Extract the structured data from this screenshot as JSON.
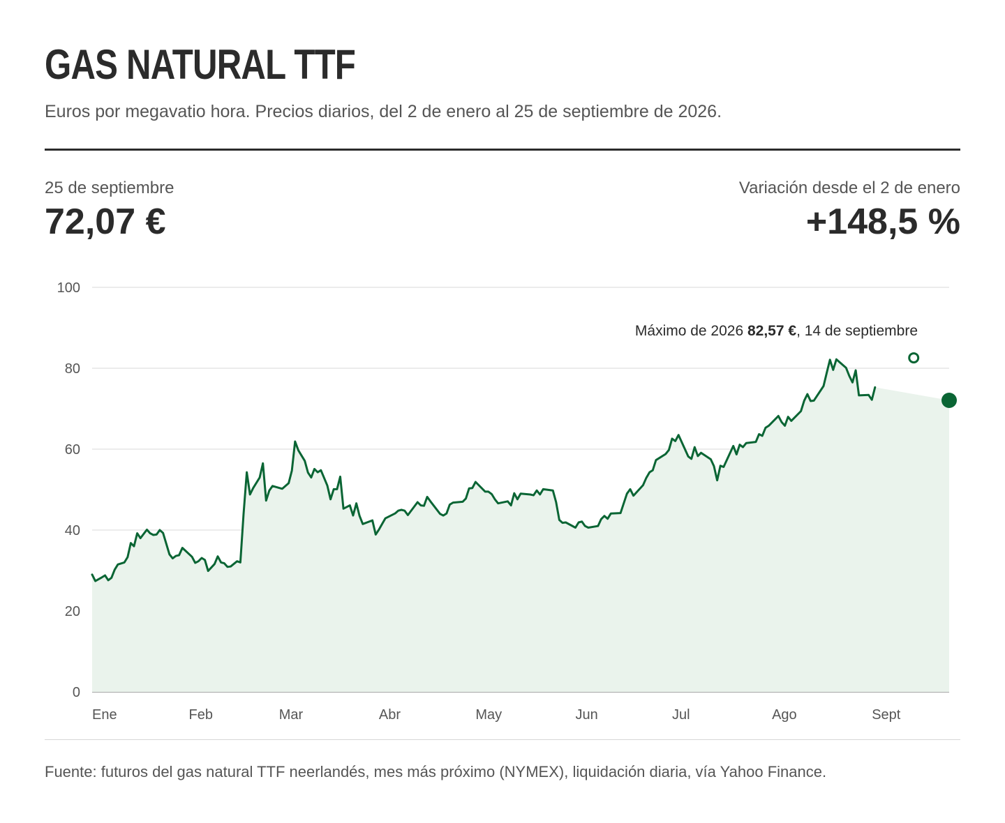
{
  "header": {
    "title": "GAS NATURAL TTF",
    "subtitle": "Euros por megavatio hora. Precios diarios, del 2 de enero al 25 de septiembre de 2026."
  },
  "stats": {
    "last_label": "25 de septiembre",
    "last_value": "72,07 €",
    "change_label": "Variación desde el 2 de enero",
    "change_value": "+148,5 %"
  },
  "annotation": {
    "prefix": "Máximo de 2026 ",
    "value": "82,57 €",
    "suffix": ", 14 de septiembre"
  },
  "footer": {
    "source": "Fuente: futuros del gas natural TTF neerlandés, mes más próximo (NYMEX), liquidación diaria, vía Yahoo Finance."
  },
  "colors": {
    "line": "#0a6534",
    "area": "#eaf3ec",
    "grid": "#d9d9d9",
    "axis": "#8a8a8a"
  },
  "chart_data": {
    "type": "area",
    "title": "GAS NATURAL TTF",
    "ylabel": "Euros por megavatio hora",
    "ylim": [
      0,
      100
    ],
    "yticks": [
      0,
      20,
      40,
      60,
      80,
      100
    ],
    "xlim": [
      "2026-01-02",
      "2026-09-25"
    ],
    "x_ticks": [
      {
        "label": "Ene",
        "date": "2026-01-01"
      },
      {
        "label": "Feb",
        "date": "2026-02-01"
      },
      {
        "label": "Mar",
        "date": "2026-03-01"
      },
      {
        "label": "Abr",
        "date": "2026-04-01"
      },
      {
        "label": "May",
        "date": "2026-05-01"
      },
      {
        "label": "Jun",
        "date": "2026-06-01"
      },
      {
        "label": "Jul",
        "date": "2026-07-01"
      },
      {
        "label": "Ago",
        "date": "2026-08-01"
      },
      {
        "label": "Sept",
        "date": "2026-09-01"
      }
    ],
    "grid": true,
    "max_point": {
      "date": "2026-09-14",
      "value": 82.57
    },
    "last_point": {
      "date": "2026-09-25",
      "value": 72.07
    },
    "series": [
      {
        "values": [
          [
            "2026-01-02",
            29.0
          ],
          [
            "2026-01-03",
            27.4
          ],
          [
            "2026-01-05",
            28.3
          ],
          [
            "2026-01-06",
            28.8
          ],
          [
            "2026-01-07",
            27.6
          ],
          [
            "2026-01-08",
            28.2
          ],
          [
            "2026-01-09",
            30.2
          ],
          [
            "2026-01-10",
            31.5
          ],
          [
            "2026-01-12",
            32.0
          ],
          [
            "2026-01-13",
            33.3
          ],
          [
            "2026-01-14",
            36.8
          ],
          [
            "2026-01-15",
            36.0
          ],
          [
            "2026-01-16",
            39.2
          ],
          [
            "2026-01-17",
            38.0
          ],
          [
            "2026-01-19",
            40.1
          ],
          [
            "2026-01-20",
            39.2
          ],
          [
            "2026-01-21",
            38.8
          ],
          [
            "2026-01-22",
            38.9
          ],
          [
            "2026-01-23",
            40.0
          ],
          [
            "2026-01-24",
            39.3
          ],
          [
            "2026-01-26",
            34.0
          ],
          [
            "2026-01-27",
            33.0
          ],
          [
            "2026-01-28",
            33.6
          ],
          [
            "2026-01-29",
            33.8
          ],
          [
            "2026-01-30",
            35.6
          ],
          [
            "2026-02-02",
            33.4
          ],
          [
            "2026-02-03",
            31.9
          ],
          [
            "2026-02-04",
            32.3
          ],
          [
            "2026-02-05",
            33.1
          ],
          [
            "2026-02-06",
            32.6
          ],
          [
            "2026-02-07",
            29.9
          ],
          [
            "2026-02-09",
            31.6
          ],
          [
            "2026-02-10",
            33.5
          ],
          [
            "2026-02-11",
            32.0
          ],
          [
            "2026-02-12",
            31.8
          ],
          [
            "2026-02-13",
            30.9
          ],
          [
            "2026-02-14",
            31.0
          ],
          [
            "2026-02-16",
            32.3
          ],
          [
            "2026-02-17",
            32.0
          ],
          [
            "2026-02-18",
            44.0
          ],
          [
            "2026-02-19",
            54.3
          ],
          [
            "2026-02-20",
            48.8
          ],
          [
            "2026-02-21",
            50.4
          ],
          [
            "2026-02-23",
            53.0
          ],
          [
            "2026-02-24",
            56.5
          ],
          [
            "2026-02-25",
            47.3
          ],
          [
            "2026-02-26",
            49.8
          ],
          [
            "2026-02-27",
            50.9
          ],
          [
            "2026-03-02",
            50.2
          ],
          [
            "2026-03-03",
            50.9
          ],
          [
            "2026-03-04",
            51.6
          ],
          [
            "2026-03-05",
            54.7
          ],
          [
            "2026-03-06",
            61.9
          ],
          [
            "2026-03-07",
            59.7
          ],
          [
            "2026-03-09",
            57.1
          ],
          [
            "2026-03-10",
            54.2
          ],
          [
            "2026-03-11",
            53.0
          ],
          [
            "2026-03-12",
            55.1
          ],
          [
            "2026-03-13",
            54.3
          ],
          [
            "2026-03-14",
            54.8
          ],
          [
            "2026-03-16",
            51.0
          ],
          [
            "2026-03-17",
            47.6
          ],
          [
            "2026-03-18",
            50.1
          ],
          [
            "2026-03-19",
            50.1
          ],
          [
            "2026-03-20",
            53.2
          ],
          [
            "2026-03-21",
            45.3
          ],
          [
            "2026-03-23",
            46.1
          ],
          [
            "2026-03-24",
            43.6
          ],
          [
            "2026-03-25",
            46.6
          ],
          [
            "2026-03-26",
            43.5
          ],
          [
            "2026-03-27",
            41.5
          ],
          [
            "2026-03-30",
            42.4
          ],
          [
            "2026-03-31",
            38.9
          ],
          [
            "2026-04-01",
            40.1
          ],
          [
            "2026-04-02",
            41.5
          ],
          [
            "2026-04-03",
            42.9
          ],
          [
            "2026-04-06",
            44.1
          ],
          [
            "2026-04-07",
            44.8
          ],
          [
            "2026-04-08",
            45.0
          ],
          [
            "2026-04-09",
            44.8
          ],
          [
            "2026-04-10",
            43.7
          ],
          [
            "2026-04-13",
            46.9
          ],
          [
            "2026-04-14",
            46.1
          ],
          [
            "2026-04-15",
            46.0
          ],
          [
            "2026-04-16",
            48.2
          ],
          [
            "2026-04-17",
            47.1
          ],
          [
            "2026-04-20",
            44.0
          ],
          [
            "2026-04-21",
            43.6
          ],
          [
            "2026-04-22",
            44.1
          ],
          [
            "2026-04-23",
            46.3
          ],
          [
            "2026-04-24",
            46.8
          ],
          [
            "2026-04-27",
            47.0
          ],
          [
            "2026-04-28",
            47.8
          ],
          [
            "2026-04-29",
            50.3
          ],
          [
            "2026-04-30",
            50.4
          ],
          [
            "2026-05-01",
            51.9
          ],
          [
            "2026-05-04",
            49.5
          ],
          [
            "2026-05-05",
            49.5
          ],
          [
            "2026-05-06",
            48.9
          ],
          [
            "2026-05-07",
            47.6
          ],
          [
            "2026-05-08",
            46.6
          ],
          [
            "2026-05-11",
            47.1
          ],
          [
            "2026-05-12",
            46.1
          ],
          [
            "2026-05-13",
            49.1
          ],
          [
            "2026-05-14",
            47.6
          ],
          [
            "2026-05-15",
            49.0
          ],
          [
            "2026-05-18",
            48.8
          ],
          [
            "2026-05-19",
            48.6
          ],
          [
            "2026-05-20",
            49.8
          ],
          [
            "2026-05-21",
            48.8
          ],
          [
            "2026-05-22",
            50.1
          ],
          [
            "2026-05-25",
            49.8
          ],
          [
            "2026-05-26",
            46.9
          ],
          [
            "2026-05-27",
            42.5
          ],
          [
            "2026-05-28",
            41.8
          ],
          [
            "2026-05-29",
            41.9
          ],
          [
            "2026-06-01",
            40.6
          ],
          [
            "2026-06-02",
            41.9
          ],
          [
            "2026-06-03",
            42.1
          ],
          [
            "2026-06-04",
            41.0
          ],
          [
            "2026-06-05",
            40.6
          ],
          [
            "2026-06-08",
            41.0
          ],
          [
            "2026-06-09",
            42.7
          ],
          [
            "2026-06-10",
            43.5
          ],
          [
            "2026-06-11",
            42.8
          ],
          [
            "2026-06-12",
            44.1
          ],
          [
            "2026-06-15",
            44.2
          ],
          [
            "2026-06-16",
            46.6
          ],
          [
            "2026-06-17",
            49.0
          ],
          [
            "2026-06-18",
            50.1
          ],
          [
            "2026-06-19",
            48.5
          ],
          [
            "2026-06-22",
            51.1
          ],
          [
            "2026-06-23",
            52.9
          ],
          [
            "2026-06-24",
            54.3
          ],
          [
            "2026-06-25",
            54.8
          ],
          [
            "2026-06-26",
            57.3
          ],
          [
            "2026-06-29",
            58.8
          ],
          [
            "2026-06-30",
            59.8
          ],
          [
            "2026-07-01",
            62.6
          ],
          [
            "2026-07-02",
            62.0
          ],
          [
            "2026-07-03",
            63.5
          ],
          [
            "2026-07-06",
            58.2
          ],
          [
            "2026-07-07",
            57.6
          ],
          [
            "2026-07-08",
            60.5
          ],
          [
            "2026-07-09",
            58.3
          ],
          [
            "2026-07-10",
            59.1
          ],
          [
            "2026-07-13",
            57.5
          ],
          [
            "2026-07-14",
            55.8
          ],
          [
            "2026-07-15",
            52.3
          ],
          [
            "2026-07-16",
            55.9
          ],
          [
            "2026-07-17",
            55.6
          ],
          [
            "2026-07-20",
            60.8
          ],
          [
            "2026-07-21",
            58.7
          ],
          [
            "2026-07-22",
            61.1
          ],
          [
            "2026-07-23",
            60.5
          ],
          [
            "2026-07-24",
            61.5
          ],
          [
            "2026-07-27",
            61.8
          ],
          [
            "2026-07-28",
            63.7
          ],
          [
            "2026-07-29",
            63.3
          ],
          [
            "2026-07-30",
            65.3
          ],
          [
            "2026-07-31",
            65.8
          ],
          [
            "2026-08-03",
            68.2
          ],
          [
            "2026-08-04",
            66.7
          ],
          [
            "2026-08-05",
            65.8
          ],
          [
            "2026-08-06",
            68.0
          ],
          [
            "2026-08-07",
            67.0
          ],
          [
            "2026-08-10",
            69.4
          ],
          [
            "2026-08-11",
            72.0
          ],
          [
            "2026-08-12",
            73.6
          ],
          [
            "2026-08-13",
            71.9
          ],
          [
            "2026-08-14",
            72.0
          ],
          [
            "2026-08-17",
            75.6
          ],
          [
            "2026-08-18",
            78.9
          ],
          [
            "2026-08-19",
            82.1
          ],
          [
            "2026-08-20",
            79.6
          ],
          [
            "2026-08-21",
            82.2
          ],
          [
            "2026-08-24",
            80.1
          ],
          [
            "2026-08-25",
            78.1
          ],
          [
            "2026-08-26",
            76.5
          ],
          [
            "2026-08-27",
            79.5
          ],
          [
            "2026-08-28",
            73.3
          ],
          [
            "2026-08-31",
            73.4
          ],
          [
            "2026-09-01",
            72.2
          ],
          [
            "2026-09-02",
            75.3
          ]
        ]
      }
    ]
  }
}
